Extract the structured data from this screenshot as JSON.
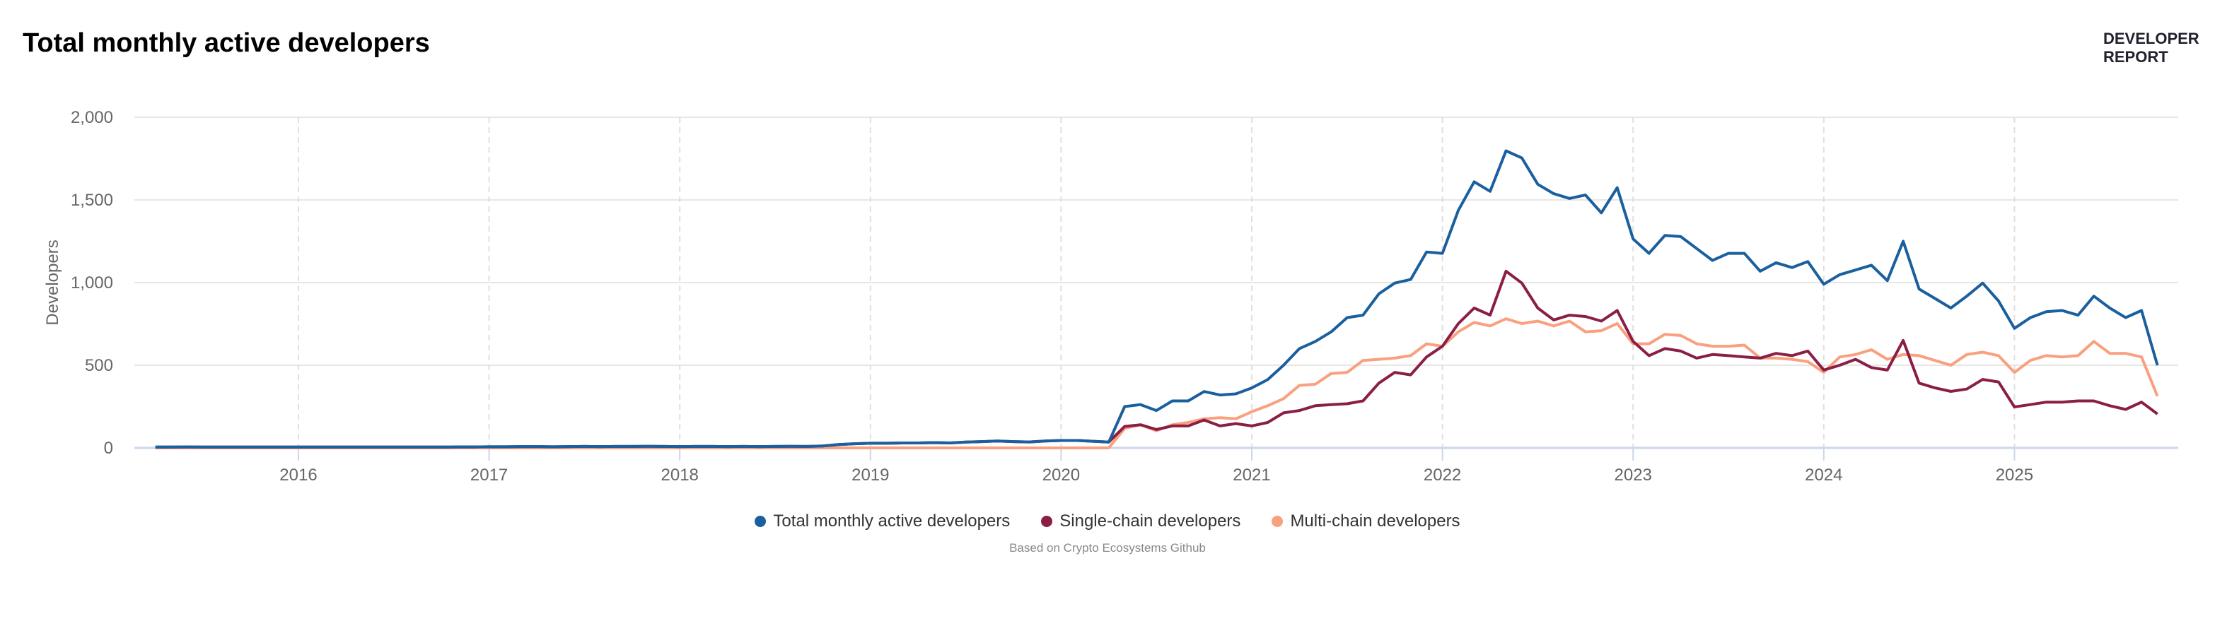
{
  "header": {
    "title": "Total monthly active developers",
    "brand_line1": "DEVELOPER",
    "brand_line2": "REPORT"
  },
  "caption": "Based on Crypto Ecosystems Github",
  "chart_data": {
    "type": "line",
    "title": "Total monthly active developers",
    "ylabel": "Developers",
    "xlabel": "",
    "ylim": [
      0,
      2000
    ],
    "yticks": [
      "0",
      "500",
      "1,000",
      "1,500",
      "2,000"
    ],
    "ytick_values": [
      0,
      500,
      1000,
      1500,
      2000
    ],
    "xticks": [
      "2016",
      "2017",
      "2018",
      "2019",
      "2020",
      "2021",
      "2022",
      "2023",
      "2024",
      "2025"
    ],
    "grid": true,
    "legend": "bottom-center",
    "x": [
      "2015-04",
      "2015-05",
      "2015-06",
      "2015-07",
      "2015-08",
      "2015-09",
      "2015-10",
      "2015-11",
      "2015-12",
      "2016-01",
      "2016-02",
      "2016-03",
      "2016-04",
      "2016-05",
      "2016-06",
      "2016-07",
      "2016-08",
      "2016-09",
      "2016-10",
      "2016-11",
      "2016-12",
      "2017-01",
      "2017-02",
      "2017-03",
      "2017-04",
      "2017-05",
      "2017-06",
      "2017-07",
      "2017-08",
      "2017-09",
      "2017-10",
      "2017-11",
      "2017-12",
      "2018-01",
      "2018-02",
      "2018-03",
      "2018-04",
      "2018-05",
      "2018-06",
      "2018-07",
      "2018-08",
      "2018-09",
      "2018-10",
      "2018-11",
      "2018-12",
      "2019-01",
      "2019-02",
      "2019-03",
      "2019-04",
      "2019-05",
      "2019-06",
      "2019-07",
      "2019-08",
      "2019-09",
      "2019-10",
      "2019-11",
      "2019-12",
      "2020-01",
      "2020-02",
      "2020-03",
      "2020-04",
      "2020-05",
      "2020-06",
      "2020-07",
      "2020-08",
      "2020-09",
      "2020-10",
      "2020-11",
      "2020-12",
      "2021-01",
      "2021-02",
      "2021-03",
      "2021-04",
      "2021-05",
      "2021-06",
      "2021-07",
      "2021-08",
      "2021-09",
      "2021-10",
      "2021-11",
      "2021-12",
      "2022-01",
      "2022-02",
      "2022-03",
      "2022-04",
      "2022-05",
      "2022-06",
      "2022-07",
      "2022-08",
      "2022-09",
      "2022-10",
      "2022-11",
      "2022-12",
      "2023-01",
      "2023-02",
      "2023-03",
      "2023-04",
      "2023-05",
      "2023-06",
      "2023-07",
      "2023-08",
      "2023-09",
      "2023-10",
      "2023-11",
      "2023-12",
      "2024-01",
      "2024-02",
      "2024-03",
      "2024-04",
      "2024-05",
      "2024-06",
      "2024-07",
      "2024-08",
      "2024-09",
      "2024-10",
      "2024-11",
      "2024-12",
      "2025-01",
      "2025-02",
      "2025-03",
      "2025-04",
      "2025-05",
      "2025-06",
      "2025-07",
      "2025-08",
      "2025-09",
      "2025-10"
    ],
    "series": [
      {
        "name": "Total monthly active developers",
        "color": "#1a5f9e",
        "values": [
          5,
          5,
          6,
          5,
          5,
          5,
          5,
          5,
          5,
          5,
          5,
          5,
          5,
          5,
          5,
          5,
          5,
          5,
          5,
          6,
          6,
          7,
          7,
          8,
          8,
          7,
          8,
          9,
          8,
          9,
          9,
          10,
          9,
          8,
          9,
          9,
          8,
          9,
          8,
          9,
          10,
          9,
          12,
          20,
          25,
          28,
          28,
          30,
          30,
          32,
          30,
          35,
          38,
          42,
          38,
          36,
          42,
          45,
          45,
          40,
          35,
          250,
          262,
          226,
          284,
          284,
          341,
          320,
          327,
          363,
          413,
          500,
          601,
          644,
          702,
          788,
          803,
          932,
          997,
          1019,
          1185,
          1177,
          1437,
          1610,
          1552,
          1797,
          1754,
          1595,
          1538,
          1509,
          1530,
          1422,
          1574,
          1264,
          1177,
          1285,
          1278,
          1206,
          1134,
          1177,
          1177,
          1069,
          1120,
          1091,
          1127,
          990,
          1048,
          1076,
          1105,
          1012,
          1250,
          961,
          904,
          846,
          918,
          997,
          889,
          723,
          788,
          824,
          831,
          803,
          918,
          846,
          788,
          831,
          500
        ]
      },
      {
        "name": "Single-chain developers",
        "color": "#8b1e45",
        "values": [
          5,
          5,
          6,
          5,
          5,
          5,
          5,
          5,
          5,
          5,
          5,
          5,
          5,
          5,
          5,
          5,
          5,
          5,
          5,
          6,
          6,
          7,
          7,
          8,
          8,
          7,
          8,
          9,
          8,
          9,
          9,
          10,
          9,
          8,
          9,
          9,
          8,
          9,
          8,
          9,
          10,
          9,
          12,
          20,
          25,
          28,
          28,
          30,
          30,
          32,
          30,
          35,
          38,
          42,
          38,
          36,
          42,
          45,
          45,
          40,
          35,
          130,
          140,
          111,
          133,
          133,
          169,
          133,
          147,
          133,
          154,
          212,
          226,
          255,
          262,
          267,
          284,
          392,
          457,
          442,
          550,
          615,
          752,
          846,
          803,
          1069,
          997,
          846,
          774,
          803,
          795,
          767,
          831,
          644,
          558,
          601,
          586,
          543,
          565,
          558,
          550,
          543,
          572,
          558,
          586,
          471,
          500,
          536,
          486,
          471,
          650,
          392,
          363,
          342,
          356,
          414,
          399,
          248,
          262,
          277,
          277,
          284,
          284,
          255,
          233,
          277,
          205
        ]
      },
      {
        "name": "Multi-chain developers",
        "color": "#f9a07f",
        "values": [
          0,
          0,
          0,
          0,
          0,
          0,
          0,
          0,
          0,
          0,
          0,
          0,
          0,
          0,
          0,
          0,
          0,
          0,
          0,
          0,
          0,
          0,
          0,
          0,
          0,
          0,
          0,
          0,
          0,
          0,
          0,
          0,
          0,
          0,
          0,
          0,
          0,
          0,
          0,
          0,
          0,
          0,
          0,
          0,
          0,
          0,
          0,
          0,
          0,
          0,
          0,
          0,
          0,
          0,
          0,
          0,
          0,
          0,
          0,
          0,
          0,
          118,
          140,
          104,
          140,
          154,
          176,
          183,
          176,
          219,
          255,
          298,
          378,
          385,
          450,
          457,
          529,
          536,
          543,
          558,
          630,
          615,
          702,
          759,
          738,
          781,
          752,
          767,
          738,
          767,
          702,
          709,
          752,
          630,
          630,
          687,
          680,
          630,
          615,
          615,
          622,
          543,
          543,
          536,
          522,
          457,
          550,
          565,
          594,
          536,
          565,
          558,
          529,
          500,
          565,
          579,
          558,
          457,
          529,
          558,
          550,
          558,
          644,
          572,
          572,
          550,
          313
        ]
      }
    ]
  }
}
